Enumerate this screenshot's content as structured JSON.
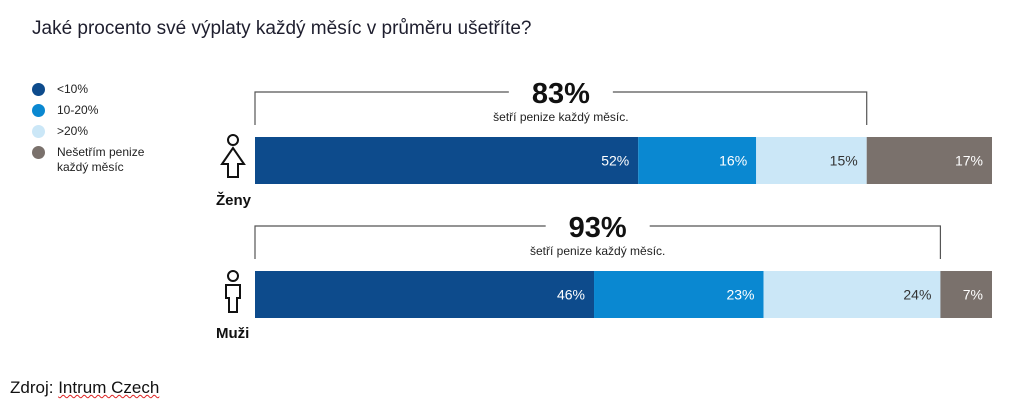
{
  "chart_data": {
    "type": "bar",
    "orientation": "horizontal-stacked",
    "title": "Jaké procento své výplaty každý měsíc v průměru ušetříte?",
    "legend": {
      "placement": "left",
      "entries": [
        {
          "label": "<10%",
          "color": "#0d4b8c"
        },
        {
          "label": "10-20%",
          "color": "#0a88d1"
        },
        {
          "label": ">20%",
          "color": "#cbe7f7"
        },
        {
          "label": "Nešetřím penize každý měsíc",
          "color": "#7a716c"
        }
      ]
    },
    "categories": [
      "Ženy",
      "Muži"
    ],
    "series": [
      {
        "name": "<10%",
        "values": [
          52,
          46
        ],
        "labels": [
          "52%",
          "46%"
        ]
      },
      {
        "name": "10-20%",
        "values": [
          16,
          23
        ],
        "labels": [
          "16%",
          "23%"
        ]
      },
      {
        "name": ">20%",
        "values": [
          15,
          24
        ],
        "labels": [
          "15%",
          "24%"
        ]
      },
      {
        "name": "Nešetřím penize každý měsíc",
        "values": [
          17,
          7
        ],
        "labels": [
          "17%",
          "7%"
        ]
      }
    ],
    "annotations": [
      {
        "value": "83%",
        "text": "šetří penize každý měsíc."
      },
      {
        "value": "93%",
        "text": "šetří penize každý měsíc."
      }
    ],
    "xlim": [
      0,
      100
    ]
  },
  "source": {
    "prefix": "Zdroj:",
    "text": "Intrum Czech"
  }
}
